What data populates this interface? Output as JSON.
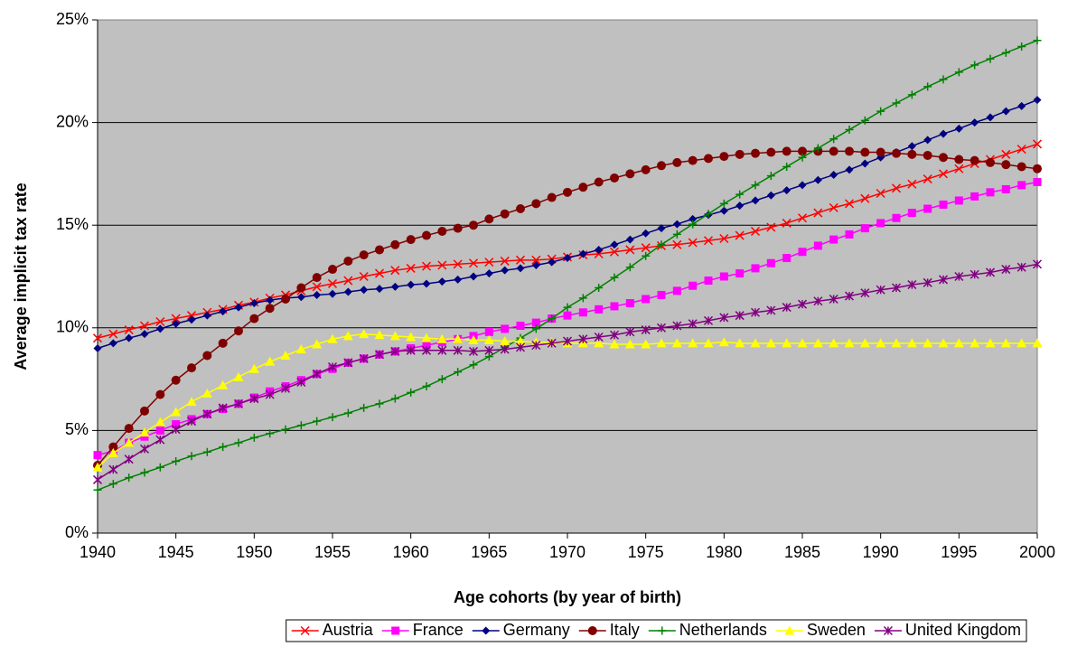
{
  "chart_data": {
    "type": "line",
    "x_label": "Age cohorts (by year of birth)",
    "y_label": "Average implicit tax rate",
    "background": "#c0c0c0",
    "grid": true,
    "legend": "bottom",
    "x": [
      1940,
      1941,
      1942,
      1943,
      1944,
      1945,
      1946,
      1947,
      1948,
      1949,
      1950,
      1951,
      1952,
      1953,
      1954,
      1955,
      1956,
      1957,
      1958,
      1959,
      1960,
      1961,
      1962,
      1963,
      1964,
      1965,
      1966,
      1967,
      1968,
      1969,
      1970,
      1971,
      1972,
      1973,
      1974,
      1975,
      1976,
      1977,
      1978,
      1979,
      1980,
      1981,
      1982,
      1983,
      1984,
      1985,
      1986,
      1987,
      1988,
      1989,
      1990,
      1991,
      1992,
      1993,
      1994,
      1995,
      1996,
      1997,
      1998,
      1999,
      2000
    ],
    "xlim": [
      1940,
      2000
    ],
    "xticks": [
      1940,
      1945,
      1950,
      1955,
      1960,
      1965,
      1970,
      1975,
      1980,
      1985,
      1990,
      1995,
      2000
    ],
    "ylim": [
      0,
      25
    ],
    "yticks": [
      {
        "value": 0,
        "label": "0%"
      },
      {
        "value": 5,
        "label": "5%"
      },
      {
        "value": 10,
        "label": "10%"
      },
      {
        "value": 15,
        "label": "15%"
      },
      {
        "value": 20,
        "label": "20%"
      },
      {
        "value": 25,
        "label": "25%"
      }
    ],
    "series": [
      {
        "name": "Austria",
        "color": "#ff0000",
        "marker": "x",
        "values": [
          9.5,
          9.7,
          9.9,
          10.1,
          10.3,
          10.45,
          10.6,
          10.75,
          10.9,
          11.1,
          11.25,
          11.45,
          11.6,
          11.8,
          12.0,
          12.15,
          12.3,
          12.5,
          12.65,
          12.8,
          12.9,
          13.0,
          13.05,
          13.1,
          13.15,
          13.2,
          13.25,
          13.3,
          13.3,
          13.35,
          13.45,
          13.55,
          13.6,
          13.7,
          13.8,
          13.9,
          14.0,
          14.05,
          14.15,
          14.25,
          14.35,
          14.5,
          14.7,
          14.9,
          15.1,
          15.35,
          15.6,
          15.85,
          16.05,
          16.3,
          16.55,
          16.8,
          17.0,
          17.25,
          17.5,
          17.75,
          18.0,
          18.2,
          18.45,
          18.7,
          18.95
        ]
      },
      {
        "name": "France",
        "color": "#ff00ff",
        "marker": "square",
        "values": [
          3.8,
          4.0,
          4.4,
          4.7,
          5.0,
          5.3,
          5.55,
          5.8,
          6.05,
          6.3,
          6.6,
          6.9,
          7.15,
          7.45,
          7.75,
          8.0,
          8.3,
          8.5,
          8.7,
          8.85,
          9.0,
          9.15,
          9.3,
          9.45,
          9.6,
          9.8,
          9.95,
          10.1,
          10.25,
          10.45,
          10.6,
          10.75,
          10.9,
          11.05,
          11.2,
          11.4,
          11.6,
          11.8,
          12.05,
          12.3,
          12.5,
          12.65,
          12.9,
          13.15,
          13.4,
          13.7,
          14.0,
          14.3,
          14.55,
          14.85,
          15.1,
          15.35,
          15.6,
          15.8,
          16.0,
          16.2,
          16.4,
          16.6,
          16.75,
          16.95,
          17.1
        ]
      },
      {
        "name": "Germany",
        "color": "#000080",
        "marker": "diamond",
        "values": [
          9.0,
          9.25,
          9.5,
          9.7,
          9.95,
          10.2,
          10.4,
          10.6,
          10.8,
          11.0,
          11.2,
          11.35,
          11.45,
          11.5,
          11.6,
          11.65,
          11.75,
          11.85,
          11.9,
          12.0,
          12.1,
          12.15,
          12.25,
          12.35,
          12.5,
          12.65,
          12.8,
          12.9,
          13.05,
          13.2,
          13.4,
          13.6,
          13.8,
          14.05,
          14.3,
          14.6,
          14.85,
          15.05,
          15.3,
          15.5,
          15.7,
          15.95,
          16.2,
          16.45,
          16.7,
          16.95,
          17.2,
          17.45,
          17.7,
          18.0,
          18.3,
          18.55,
          18.85,
          19.15,
          19.45,
          19.7,
          20.0,
          20.25,
          20.55,
          20.8,
          21.1
        ]
      },
      {
        "name": "Italy",
        "color": "#800000",
        "marker": "circle",
        "values": [
          3.3,
          4.2,
          5.1,
          5.95,
          6.75,
          7.45,
          8.05,
          8.65,
          9.25,
          9.85,
          10.45,
          10.95,
          11.4,
          11.95,
          12.45,
          12.85,
          13.25,
          13.55,
          13.8,
          14.05,
          14.3,
          14.5,
          14.7,
          14.85,
          15.0,
          15.3,
          15.55,
          15.8,
          16.05,
          16.35,
          16.6,
          16.85,
          17.1,
          17.3,
          17.5,
          17.7,
          17.9,
          18.05,
          18.15,
          18.25,
          18.35,
          18.45,
          18.5,
          18.55,
          18.6,
          18.6,
          18.6,
          18.6,
          18.6,
          18.55,
          18.55,
          18.5,
          18.45,
          18.4,
          18.3,
          18.2,
          18.15,
          18.05,
          17.95,
          17.85,
          17.75
        ]
      },
      {
        "name": "Netherlands",
        "color": "#008000",
        "marker": "plus",
        "values": [
          2.1,
          2.4,
          2.7,
          2.95,
          3.2,
          3.5,
          3.75,
          3.95,
          4.2,
          4.4,
          4.65,
          4.85,
          5.05,
          5.25,
          5.45,
          5.65,
          5.85,
          6.1,
          6.3,
          6.55,
          6.85,
          7.15,
          7.5,
          7.85,
          8.2,
          8.6,
          9.05,
          9.5,
          9.95,
          10.45,
          11.0,
          11.45,
          11.95,
          12.45,
          12.95,
          13.5,
          14.05,
          14.55,
          15.05,
          15.55,
          16.05,
          16.5,
          16.95,
          17.4,
          17.85,
          18.3,
          18.75,
          19.2,
          19.65,
          20.1,
          20.55,
          20.95,
          21.35,
          21.75,
          22.1,
          22.45,
          22.8,
          23.1,
          23.4,
          23.7,
          24.0
        ]
      },
      {
        "name": "Sweden",
        "color": "#ffff00",
        "marker": "triangle",
        "values": [
          3.2,
          3.9,
          4.4,
          4.9,
          5.4,
          5.9,
          6.4,
          6.8,
          7.2,
          7.6,
          8.0,
          8.35,
          8.65,
          8.95,
          9.2,
          9.45,
          9.6,
          9.7,
          9.65,
          9.6,
          9.55,
          9.5,
          9.45,
          9.45,
          9.4,
          9.4,
          9.35,
          9.35,
          9.3,
          9.3,
          9.25,
          9.25,
          9.25,
          9.2,
          9.2,
          9.2,
          9.25,
          9.25,
          9.25,
          9.25,
          9.3,
          9.25,
          9.25,
          9.25,
          9.25,
          9.25,
          9.25,
          9.25,
          9.25,
          9.25,
          9.25,
          9.25,
          9.25,
          9.25,
          9.25,
          9.25,
          9.25,
          9.25,
          9.25,
          9.25,
          9.25
        ]
      },
      {
        "name": "United Kingdom",
        "color": "#800080",
        "marker": "asterisk",
        "values": [
          2.6,
          3.1,
          3.6,
          4.1,
          4.55,
          5.05,
          5.45,
          5.8,
          6.1,
          6.3,
          6.55,
          6.75,
          7.05,
          7.35,
          7.75,
          8.1,
          8.3,
          8.5,
          8.7,
          8.85,
          8.9,
          8.9,
          8.9,
          8.9,
          8.85,
          8.9,
          8.95,
          9.05,
          9.15,
          9.25,
          9.35,
          9.45,
          9.55,
          9.65,
          9.8,
          9.9,
          10.0,
          10.1,
          10.2,
          10.35,
          10.5,
          10.6,
          10.75,
          10.85,
          11.0,
          11.15,
          11.3,
          11.4,
          11.55,
          11.7,
          11.85,
          11.95,
          12.1,
          12.2,
          12.35,
          12.5,
          12.6,
          12.7,
          12.85,
          12.95,
          13.1
        ]
      }
    ]
  }
}
